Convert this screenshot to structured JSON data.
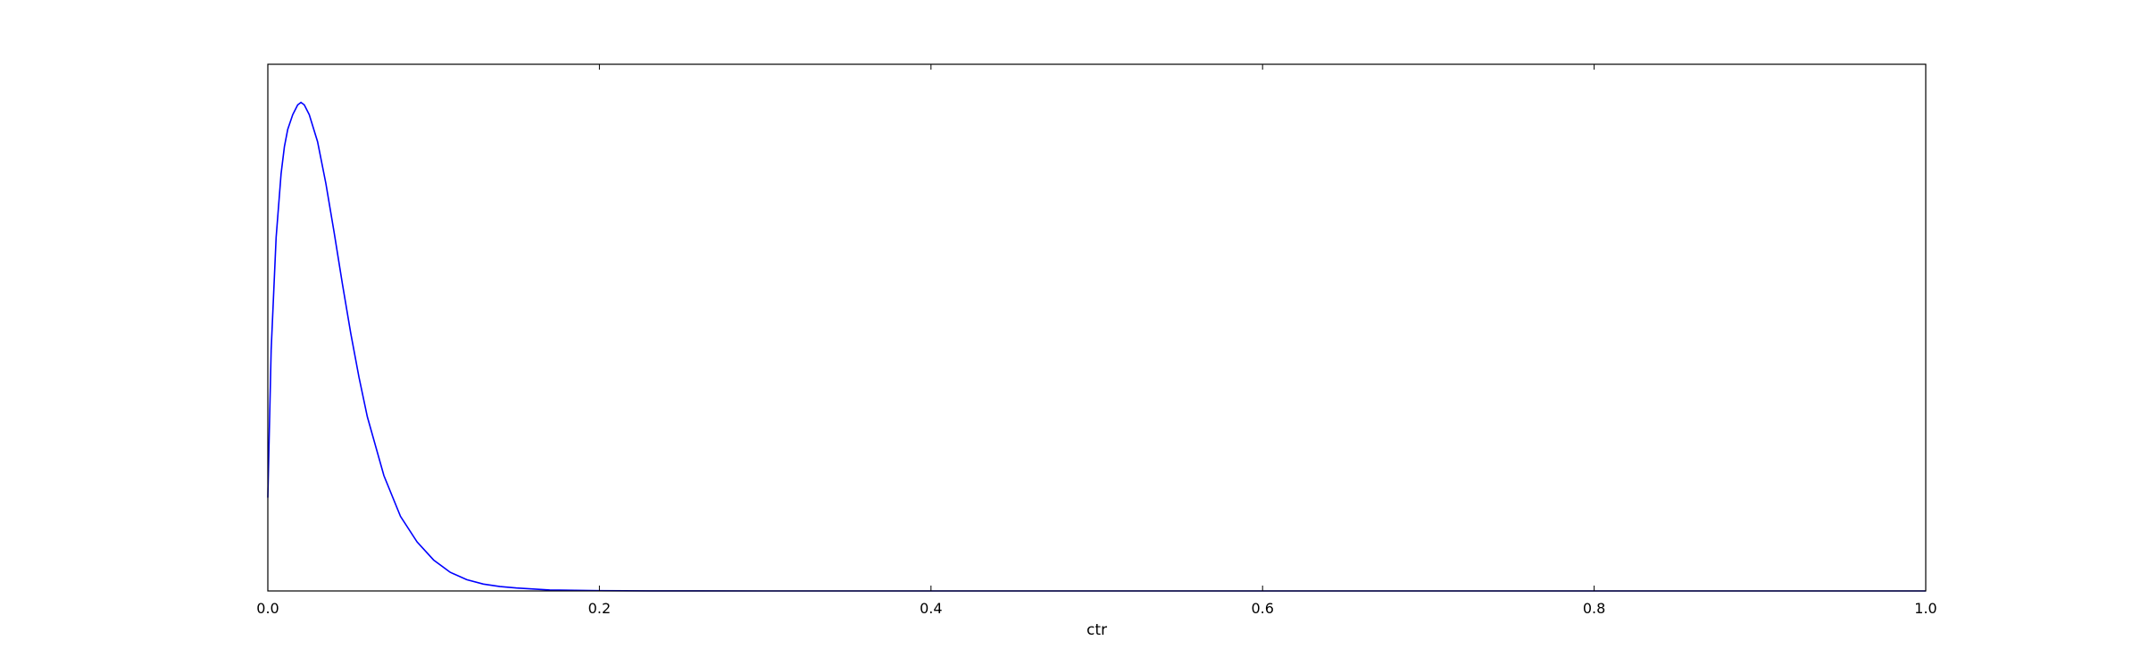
{
  "chart_data": {
    "type": "line",
    "title": "",
    "xlabel": "ctr",
    "ylabel": "",
    "xlim": [
      0.0,
      1.0
    ],
    "ylim": [
      0.0,
      1.0
    ],
    "x_ticks": [
      "0.0",
      "0.2",
      "0.4",
      "0.6",
      "0.8",
      "1.0"
    ],
    "y_ticks": [],
    "grid": false,
    "legend": "none",
    "series": [
      {
        "color": "#0000ff",
        "x": [
          0.0,
          0.002,
          0.005,
          0.008,
          0.01,
          0.012,
          0.015,
          0.018,
          0.02,
          0.022,
          0.025,
          0.03,
          0.035,
          0.04,
          0.045,
          0.05,
          0.055,
          0.06,
          0.07,
          0.08,
          0.09,
          0.1,
          0.11,
          0.12,
          0.13,
          0.14,
          0.15,
          0.17,
          0.2,
          0.23,
          0.26,
          0.3,
          0.4,
          0.5,
          0.6,
          0.7,
          0.8,
          0.9,
          1.0
        ],
        "y": [
          0.19,
          0.49,
          0.72,
          0.85,
          0.905,
          0.94,
          0.97,
          0.99,
          0.995,
          0.99,
          0.97,
          0.915,
          0.83,
          0.73,
          0.625,
          0.525,
          0.435,
          0.355,
          0.235,
          0.152,
          0.1,
          0.063,
          0.038,
          0.023,
          0.014,
          0.009,
          0.006,
          0.002,
          0.0005,
          0.0002,
          0.0001,
          0.0,
          0.0,
          0.0,
          0.0,
          0.0,
          0.0,
          0.0,
          0.0
        ]
      }
    ]
  }
}
